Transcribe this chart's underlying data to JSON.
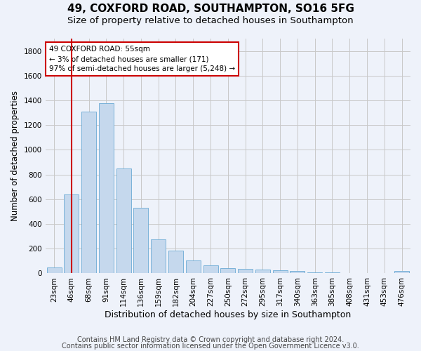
{
  "title1": "49, COXFORD ROAD, SOUTHAMPTON, SO16 5FG",
  "title2": "Size of property relative to detached houses in Southampton",
  "xlabel": "Distribution of detached houses by size in Southampton",
  "ylabel": "Number of detached properties",
  "categories": [
    "23sqm",
    "46sqm",
    "68sqm",
    "91sqm",
    "114sqm",
    "136sqm",
    "159sqm",
    "182sqm",
    "204sqm",
    "227sqm",
    "250sqm",
    "272sqm",
    "295sqm",
    "317sqm",
    "340sqm",
    "363sqm",
    "385sqm",
    "408sqm",
    "431sqm",
    "453sqm",
    "476sqm"
  ],
  "values": [
    50,
    640,
    1310,
    1380,
    848,
    530,
    275,
    185,
    105,
    65,
    40,
    38,
    32,
    25,
    18,
    10,
    10,
    5,
    5,
    3,
    18
  ],
  "bar_color": "#c5d8ed",
  "bar_edge_color": "#6aaad4",
  "vline_x_index": 1.0,
  "vline_color": "#cc0000",
  "annotation_line1": "49 COXFORD ROAD: 55sqm",
  "annotation_line2": "← 3% of detached houses are smaller (171)",
  "annotation_line3": "97% of semi-detached houses are larger (5,248) →",
  "annotation_box_color": "#ffffff",
  "annotation_box_edge": "#cc0000",
  "ylim": [
    0,
    1900
  ],
  "yticks": [
    0,
    200,
    400,
    600,
    800,
    1000,
    1200,
    1400,
    1600,
    1800
  ],
  "footer1": "Contains HM Land Registry data © Crown copyright and database right 2024.",
  "footer2": "Contains public sector information licensed under the Open Government Licence v3.0.",
  "bg_color": "#eef2fa",
  "plot_bg_color": "#eef2fa",
  "grid_color": "#c8c8c8",
  "title1_fontsize": 11,
  "title2_fontsize": 9.5,
  "xlabel_fontsize": 9,
  "ylabel_fontsize": 8.5,
  "tick_fontsize": 7.5,
  "footer_fontsize": 7
}
